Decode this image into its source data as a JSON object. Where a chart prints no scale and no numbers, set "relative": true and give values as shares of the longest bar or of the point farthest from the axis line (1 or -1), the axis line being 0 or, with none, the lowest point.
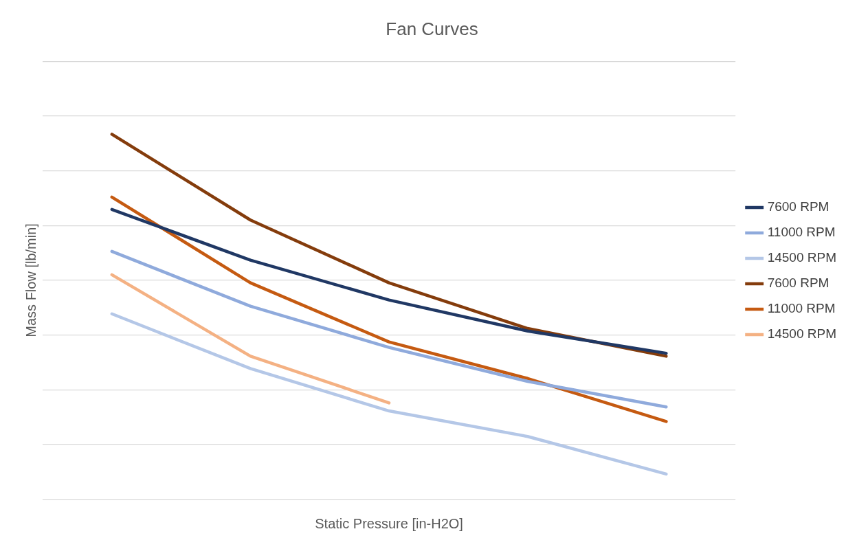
{
  "chart_data": {
    "type": "line",
    "title": "Fan Curves",
    "xlabel": "Static Pressure [in-H2O]",
    "ylabel": "Mass Flow [lb/min]",
    "categories": [
      null,
      null,
      null,
      null,
      null
    ],
    "relative": true,
    "grid": "y",
    "legend": "right",
    "marker": "none",
    "series": [
      {
        "name": "7600 RPM",
        "color": "#203864",
        "values": [
          0.794,
          0.655,
          0.546,
          0.461,
          0.4
        ]
      },
      {
        "name": "11000 RPM",
        "color": "#8faadc",
        "values": [
          0.679,
          0.529,
          0.416,
          0.323,
          0.253
        ]
      },
      {
        "name": "14500 RPM",
        "color": "#b4c7e7",
        "values": [
          0.508,
          0.358,
          0.242,
          0.172,
          0.069
        ]
      },
      {
        "name": "7600 RPM",
        "color": "#843c0c",
        "values": [
          1.0,
          0.765,
          0.593,
          0.468,
          0.392
        ]
      },
      {
        "name": "11000 RPM",
        "color": "#c55a11",
        "values": [
          0.828,
          0.593,
          0.431,
          0.331,
          0.213
        ]
      },
      {
        "name": "14500 RPM",
        "color": "#f4b183",
        "values": [
          0.615,
          0.392,
          0.264,
          null,
          null
        ]
      }
    ]
  }
}
